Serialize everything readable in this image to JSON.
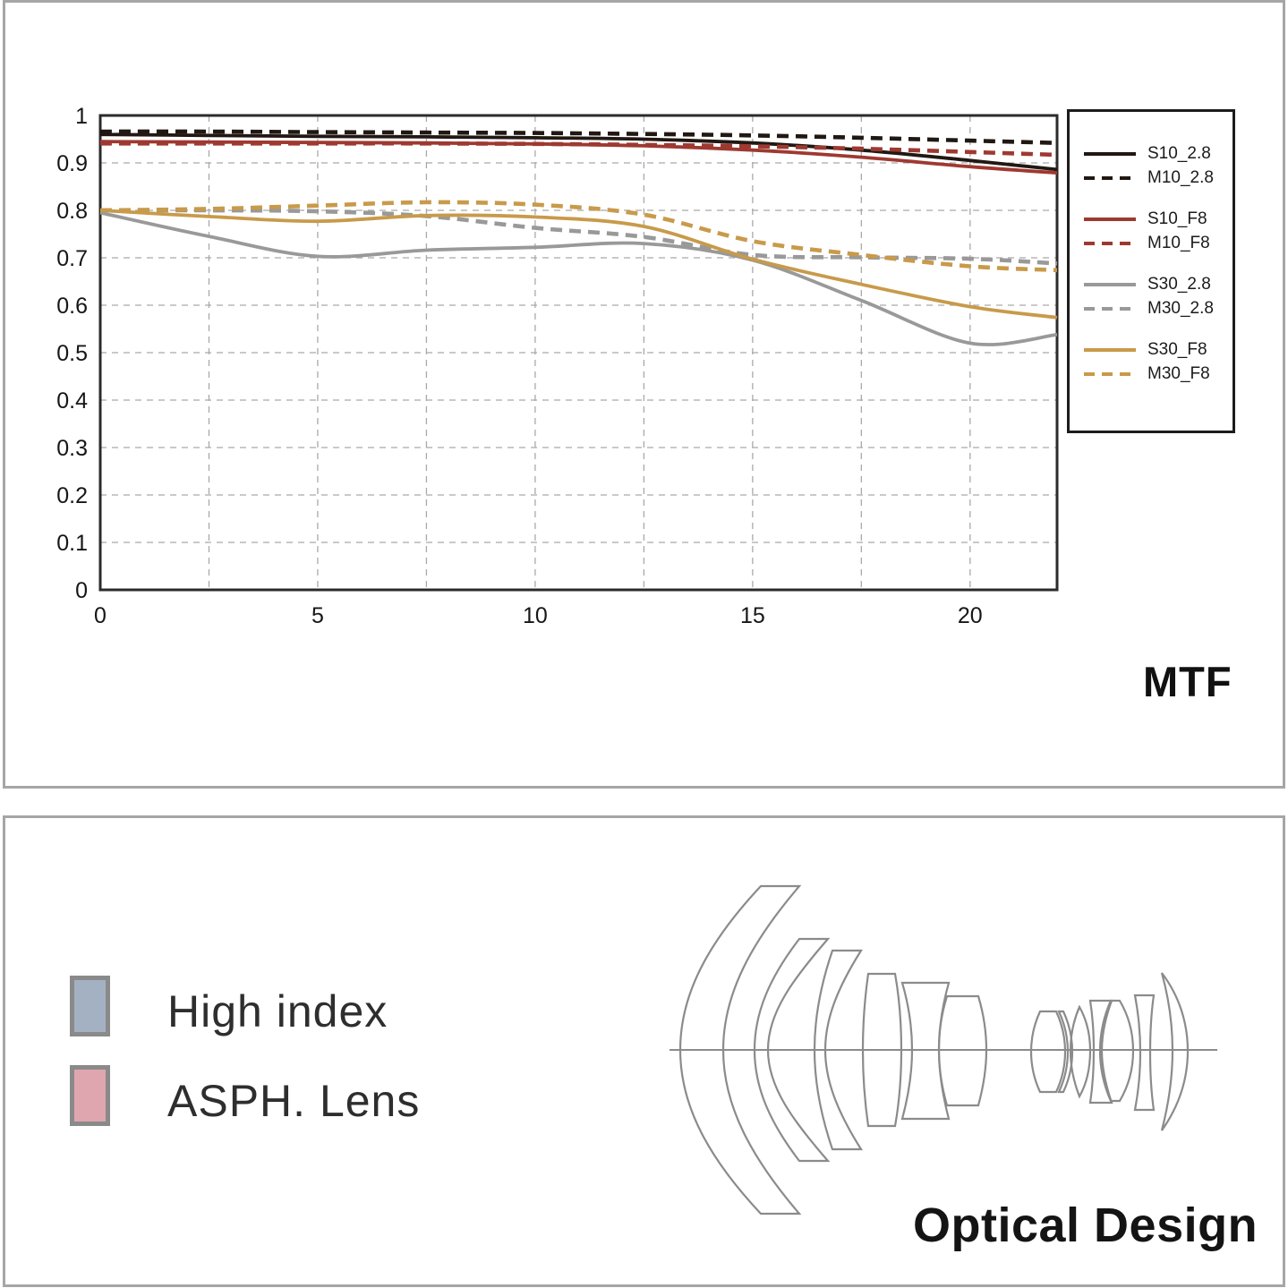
{
  "chart_data": {
    "type": "line",
    "title": "MTF",
    "xlabel": "",
    "ylabel": "",
    "xlim": [
      0,
      22
    ],
    "ylim": [
      0,
      1
    ],
    "x_tick_labels": [
      "0",
      "5",
      "10",
      "15",
      "20"
    ],
    "y_tick_labels": [
      "0",
      "0.1",
      "0.2",
      "0.3",
      "0.4",
      "0.5",
      "0.6",
      "0.7",
      "0.8",
      "0.9",
      "1"
    ],
    "grid": true,
    "grid_x_step": 2.5,
    "grid_y_step": 0.1,
    "legend_position": "right",
    "frame_color": "#2b2b2b",
    "grid_color": "#a9a9a9",
    "tick_label_color": "#161616",
    "x": [
      0,
      2.5,
      5,
      7.5,
      10,
      12.5,
      15,
      17.5,
      20,
      22
    ],
    "series": [
      {
        "name": "S10_2.8",
        "color": "#211813",
        "dash": false,
        "values": [
          0.96,
          0.958,
          0.956,
          0.955,
          0.953,
          0.95,
          0.942,
          0.927,
          0.905,
          0.886
        ]
      },
      {
        "name": "M10_2.8",
        "color": "#211813",
        "dash": true,
        "values": [
          0.966,
          0.966,
          0.965,
          0.964,
          0.963,
          0.961,
          0.958,
          0.953,
          0.947,
          0.942
        ]
      },
      {
        "name": "S10_F8",
        "color": "#9e3931",
        "dash": false,
        "values": [
          0.945,
          0.944,
          0.943,
          0.942,
          0.94,
          0.936,
          0.927,
          0.912,
          0.892,
          0.879
        ]
      },
      {
        "name": "M10_F8",
        "color": "#9e3931",
        "dash": true,
        "values": [
          0.941,
          0.941,
          0.941,
          0.941,
          0.94,
          0.938,
          0.935,
          0.93,
          0.923,
          0.917
        ]
      },
      {
        "name": "S30_2.8",
        "color": "#999999",
        "dash": false,
        "values": [
          0.795,
          0.745,
          0.703,
          0.716,
          0.722,
          0.73,
          0.695,
          0.61,
          0.52,
          0.538
        ]
      },
      {
        "name": "M30_2.8",
        "color": "#999999",
        "dash": true,
        "values": [
          0.8,
          0.8,
          0.798,
          0.788,
          0.763,
          0.744,
          0.706,
          0.701,
          0.698,
          0.688
        ]
      },
      {
        "name": "S30_F8",
        "color": "#c89a4a",
        "dash": false,
        "values": [
          0.8,
          0.787,
          0.777,
          0.789,
          0.786,
          0.766,
          0.697,
          0.644,
          0.597,
          0.574
        ]
      },
      {
        "name": "M30_F8",
        "color": "#c89a4a",
        "dash": true,
        "values": [
          0.8,
          0.803,
          0.81,
          0.817,
          0.812,
          0.791,
          0.735,
          0.706,
          0.682,
          0.674
        ]
      }
    ]
  },
  "optical_panel": {
    "title": "Optical Design",
    "legend": [
      {
        "label": "High index",
        "color": "#a4b1c3"
      },
      {
        "label": "ASPH. Lens",
        "color": "#dfa6b0"
      }
    ],
    "outline_color": "#8b8b8b",
    "axis_color": "#8b8b8b"
  }
}
